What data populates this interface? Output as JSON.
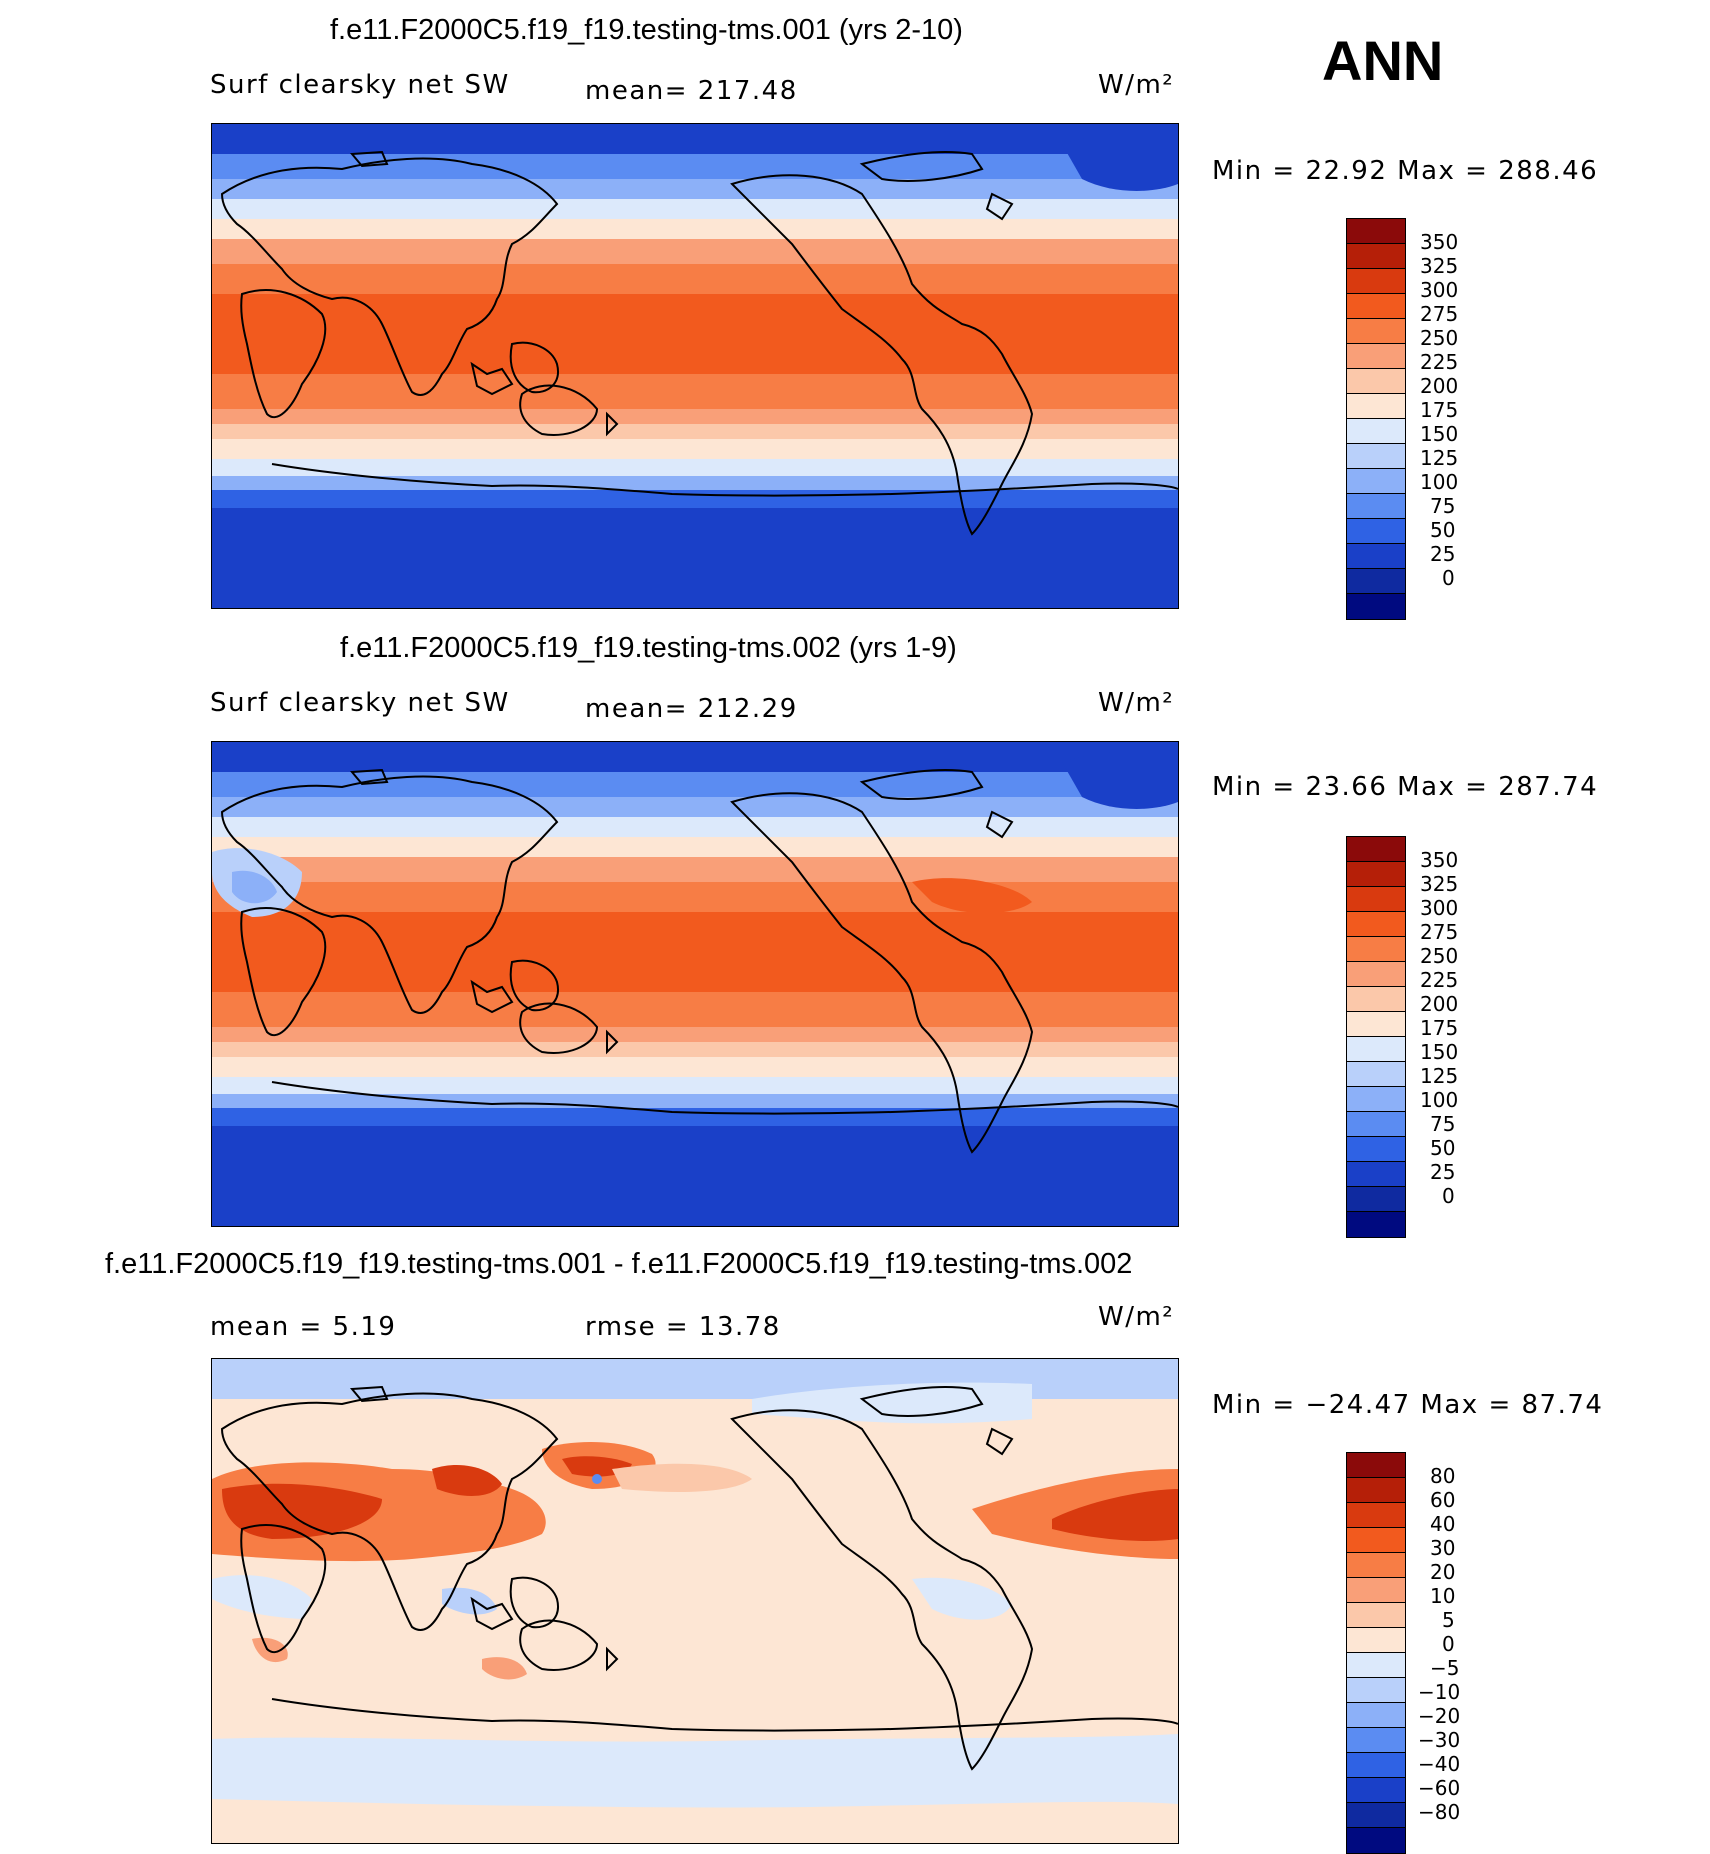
{
  "season": "ANN",
  "panels": [
    {
      "title": "f.e11.F2000C5.f19_f19.testing-tms.001 (yrs 2-10)",
      "left_label": "Surf clearsky net SW",
      "stat_label": "mean= 217.48",
      "units": "W/m²",
      "minmax": "Min =   22.92 Max = 288.46",
      "legend_ticks": [
        "350",
        "325",
        "300",
        "275",
        "250",
        "225",
        "200",
        "175",
        "150",
        "125",
        "100",
        "75",
        "50",
        "25",
        "0"
      ],
      "legend_colors": [
        "#8b0a0a",
        "#b51f08",
        "#d93a0f",
        "#f25a1e",
        "#f77d45",
        "#f99f78",
        "#fbc8aa",
        "#fde6d4",
        "#dce9fb",
        "#b9d0fa",
        "#8cb0f8",
        "#5b8cf2",
        "#2f62e4",
        "#1a40c8",
        "#0f2aa0",
        "#000a80"
      ]
    },
    {
      "title": "f.e11.F2000C5.f19_f19.testing-tms.002 (yrs 1-9)",
      "left_label": "Surf clearsky net SW",
      "stat_label": "mean= 212.29",
      "units": "W/m²",
      "minmax": "Min =   23.66 Max = 287.74",
      "legend_ticks": [
        "350",
        "325",
        "300",
        "275",
        "250",
        "225",
        "200",
        "175",
        "150",
        "125",
        "100",
        "75",
        "50",
        "25",
        "0"
      ],
      "legend_colors": [
        "#8b0a0a",
        "#b51f08",
        "#d93a0f",
        "#f25a1e",
        "#f77d45",
        "#f99f78",
        "#fbc8aa",
        "#fde6d4",
        "#dce9fb",
        "#b9d0fa",
        "#8cb0f8",
        "#5b8cf2",
        "#2f62e4",
        "#1a40c8",
        "#0f2aa0",
        "#000a80"
      ]
    },
    {
      "title": "f.e11.F2000C5.f19_f19.testing-tms.001 - f.e11.F2000C5.f19_f19.testing-tms.002",
      "left_label": "mean =    5.19",
      "stat_label": "rmse =   13.78",
      "units": "W/m²",
      "minmax": "Min = −24.47 Max =   87.74",
      "legend_ticks": [
        "80",
        "60",
        "40",
        "30",
        "20",
        "10",
        "5",
        "0",
        "−5",
        "−10",
        "−20",
        "−30",
        "−40",
        "−60",
        "−80"
      ],
      "legend_colors": [
        "#8b0a0a",
        "#b51f08",
        "#d93a0f",
        "#f25a1e",
        "#f77d45",
        "#f99f78",
        "#fbc8aa",
        "#fde6d4",
        "#dce9fb",
        "#b9d0fa",
        "#8cb0f8",
        "#5b8cf2",
        "#2f62e4",
        "#1a40c8",
        "#0f2aa0",
        "#000a80"
      ]
    }
  ]
}
